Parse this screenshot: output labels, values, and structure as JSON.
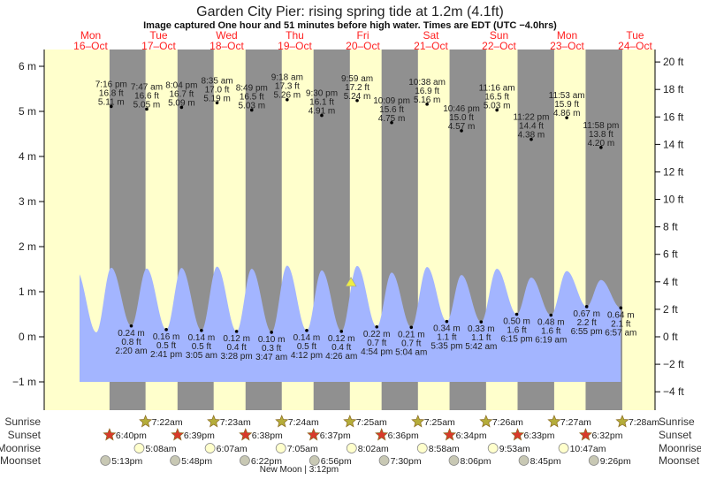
{
  "chart_data": {
    "type": "area",
    "title": "Garden City Pier: rising  spring tide at 1.2m (4.1ft)",
    "subtitle": "Image captured One hour and 51 minutes before high water. Times are EDT (UTC −4.0hrs)",
    "days": [
      {
        "dow": "Mon",
        "date": "16–Oct"
      },
      {
        "dow": "Tue",
        "date": "17–Oct"
      },
      {
        "dow": "Wed",
        "date": "18–Oct"
      },
      {
        "dow": "Thu",
        "date": "19–Oct"
      },
      {
        "dow": "Fri",
        "date": "20–Oct"
      },
      {
        "dow": "Sat",
        "date": "21–Oct"
      },
      {
        "dow": "Sun",
        "date": "22–Oct"
      },
      {
        "dow": "Mon",
        "date": "23–Oct"
      },
      {
        "dow": "Tue",
        "date": "24–Oct"
      }
    ],
    "y_left": {
      "unit": "m",
      "range": [
        -1.5,
        6.5
      ],
      "ticks": [
        "6 m",
        "5 m",
        "4 m",
        "3 m",
        "2 m",
        "1 m",
        "0 m",
        "−1 m"
      ]
    },
    "y_right": {
      "unit": "ft",
      "ticks": [
        "20 ft",
        "18 ft",
        "16 ft",
        "14 ft",
        "12 ft",
        "10 ft",
        "8 ft",
        "6 ft",
        "4 ft",
        "2 ft",
        "0 ft",
        "−2 ft",
        "−4 ft"
      ]
    },
    "current": {
      "height_m": 1.2,
      "height_ft": 4.1,
      "state": "rising"
    },
    "highs": [
      {
        "day": 0,
        "time": "7:16 pm",
        "ft": "16.8 ft",
        "m": 5.11,
        "m_label": "5.11 m"
      },
      {
        "day": 1,
        "time": "7:47 am",
        "ft": "16.6 ft",
        "m": 5.05,
        "m_label": "5.05 m"
      },
      {
        "day": 1,
        "time": "8:04 pm",
        "ft": "16.7 ft",
        "m": 5.09,
        "m_label": "5.09 m"
      },
      {
        "day": 2,
        "time": "8:35 am",
        "ft": "17.0 ft",
        "m": 5.19,
        "m_label": "5.19 m"
      },
      {
        "day": 2,
        "time": "8:49 pm",
        "ft": "16.5 ft",
        "m": 5.03,
        "m_label": "5.03 m"
      },
      {
        "day": 3,
        "time": "9:18 am",
        "ft": "17.3 ft",
        "m": 5.26,
        "m_label": "5.26 m"
      },
      {
        "day": 3,
        "time": "9:30 pm",
        "ft": "16.1 ft",
        "m": 4.91,
        "m_label": "4.91 m"
      },
      {
        "day": 4,
        "time": "9:59 am",
        "ft": "17.2 ft",
        "m": 5.24,
        "m_label": "5.24 m"
      },
      {
        "day": 4,
        "time": "10:09 pm",
        "ft": "15.6 ft",
        "m": 4.75,
        "m_label": "4.75 m"
      },
      {
        "day": 5,
        "time": "10:38 am",
        "ft": "16.9 ft",
        "m": 5.16,
        "m_label": "5.16 m"
      },
      {
        "day": 5,
        "time": "10:46 pm",
        "ft": "15.0 ft",
        "m": 4.57,
        "m_label": "4.57 m"
      },
      {
        "day": 6,
        "time": "11:16 am",
        "ft": "16.5 ft",
        "m": 5.03,
        "m_label": "5.03 m"
      },
      {
        "day": 6,
        "time": "11:22 pm",
        "ft": "14.4 ft",
        "m": 4.38,
        "m_label": "4.38 m"
      },
      {
        "day": 7,
        "time": "11:53 am",
        "ft": "15.9 ft",
        "m": 4.86,
        "m_label": "4.86 m"
      },
      {
        "day": 7,
        "time": "11:58 pm",
        "ft": "13.8 ft",
        "m": 4.2,
        "m_label": "4.20 m"
      }
    ],
    "lows": [
      {
        "day": 1,
        "time": "2:20 am",
        "ft": "0.8 ft",
        "m": 0.24,
        "m_label": "0.24 m"
      },
      {
        "day": 1,
        "time": "2:41 pm",
        "ft": "0.5 ft",
        "m": 0.16,
        "m_label": "0.16 m"
      },
      {
        "day": 2,
        "time": "3:05 am",
        "ft": "0.5 ft",
        "m": 0.14,
        "m_label": "0.14 m"
      },
      {
        "day": 2,
        "time": "3:28 pm",
        "ft": "0.4 ft",
        "m": 0.12,
        "m_label": "0.12 m"
      },
      {
        "day": 3,
        "time": "3:47 am",
        "ft": "0.3 ft",
        "m": 0.1,
        "m_label": "0.10 m"
      },
      {
        "day": 3,
        "time": "4:12 pm",
        "ft": "0.5 ft",
        "m": 0.14,
        "m_label": "0.14 m"
      },
      {
        "day": 4,
        "time": "4:26 am",
        "ft": "0.4 ft",
        "m": 0.12,
        "m_label": "0.12 m"
      },
      {
        "day": 4,
        "time": "4:54 pm",
        "ft": "0.7 ft",
        "m": 0.22,
        "m_label": "0.22 m"
      },
      {
        "day": 5,
        "time": "5:04 am",
        "ft": "0.7 ft",
        "m": 0.21,
        "m_label": "0.21 m"
      },
      {
        "day": 5,
        "time": "5:35 pm",
        "ft": "1.1 ft",
        "m": 0.34,
        "m_label": "0.34 m"
      },
      {
        "day": 6,
        "time": "5:42 am",
        "ft": "1.1 ft",
        "m": 0.33,
        "m_label": "0.33 m"
      },
      {
        "day": 6,
        "time": "6:15 pm",
        "ft": "1.6 ft",
        "m": 0.5,
        "m_label": "0.50 m"
      },
      {
        "day": 7,
        "time": "6:19 am",
        "ft": "1.6 ft",
        "m": 0.48,
        "m_label": "0.48 m"
      },
      {
        "day": 7,
        "time": "6:55 pm",
        "ft": "2.2 ft",
        "m": 0.67,
        "m_label": "0.67 m"
      },
      {
        "day": 8,
        "time": "6:57 am",
        "ft": "2.1 ft",
        "m": 0.64,
        "m_label": "0.64 m"
      }
    ],
    "sunrise": [
      {
        "day": 1,
        "time": "7:22am"
      },
      {
        "day": 2,
        "time": "7:23am"
      },
      {
        "day": 3,
        "time": "7:24am"
      },
      {
        "day": 4,
        "time": "7:25am"
      },
      {
        "day": 5,
        "time": "7:25am"
      },
      {
        "day": 6,
        "time": "7:26am"
      },
      {
        "day": 7,
        "time": "7:27am"
      },
      {
        "day": 8,
        "time": "7:28am"
      }
    ],
    "sunset": [
      {
        "day": 0,
        "time": "6:40pm"
      },
      {
        "day": 1,
        "time": "6:39pm"
      },
      {
        "day": 2,
        "time": "6:38pm"
      },
      {
        "day": 3,
        "time": "6:37pm"
      },
      {
        "day": 4,
        "time": "6:36pm"
      },
      {
        "day": 5,
        "time": "6:34pm"
      },
      {
        "day": 6,
        "time": "6:33pm"
      },
      {
        "day": 7,
        "time": "6:32pm"
      }
    ],
    "moonrise": [
      {
        "day": 1,
        "time": "5:08am"
      },
      {
        "day": 2,
        "time": "6:07am"
      },
      {
        "day": 3,
        "time": "7:05am"
      },
      {
        "day": 4,
        "time": "8:02am"
      },
      {
        "day": 5,
        "time": "8:58am"
      },
      {
        "day": 6,
        "time": "9:53am"
      },
      {
        "day": 7,
        "time": "10:47am"
      }
    ],
    "moonset": [
      {
        "day": 0,
        "time": "5:13pm"
      },
      {
        "day": 1,
        "time": "5:48pm"
      },
      {
        "day": 2,
        "time": "6:22pm"
      },
      {
        "day": 3,
        "time": "6:56pm"
      },
      {
        "day": 4,
        "time": "7:30pm"
      },
      {
        "day": 5,
        "time": "8:06pm"
      },
      {
        "day": 6,
        "time": "8:45pm"
      },
      {
        "day": 7,
        "time": "9:26pm"
      }
    ],
    "row_labels": {
      "sunrise": "Sunrise",
      "sunset": "Sunset",
      "moonrise": "Moonrise",
      "moonset": "Moonset"
    },
    "moon_phase": {
      "day": 3,
      "time": "3:12pm",
      "label": "New Moon | 3:12pm"
    },
    "colors": {
      "day": "#ffffcc",
      "night": "#909090",
      "water": "#a3b5ff",
      "day_label": "#ff2020",
      "sunrise_star": "#b5ad3a",
      "sunset_star": "#d83a2a",
      "moonrise": "#ffffcc",
      "moonset": "#c8c8b4",
      "marker": "#eeee44"
    }
  }
}
